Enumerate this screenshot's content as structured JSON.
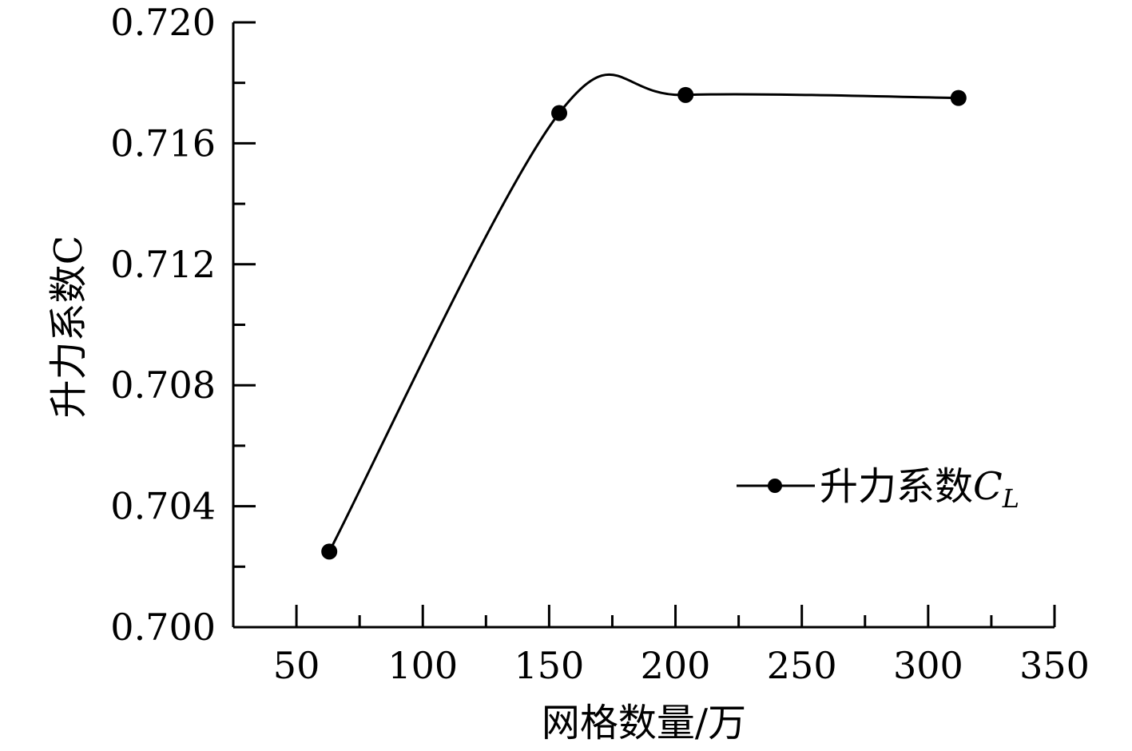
{
  "chart_data": {
    "type": "line",
    "title": "",
    "xlabel": "网格数量/万",
    "ylabel": "升力系数C",
    "xlim": [
      25,
      350
    ],
    "ylim": [
      0.7,
      0.72
    ],
    "x_major_ticks": [
      50,
      100,
      150,
      200,
      250,
      300,
      350
    ],
    "x_minor_ticks": [
      75,
      125,
      175,
      225,
      275,
      325
    ],
    "y_major_ticks": [
      0.7,
      0.704,
      0.708,
      0.712,
      0.716,
      0.72
    ],
    "y_minor_ticks": [
      0.702,
      0.706,
      0.71,
      0.714,
      0.718
    ],
    "x_tick_labels": [
      "50",
      "100",
      "150",
      "200",
      "250",
      "300",
      "350"
    ],
    "y_tick_labels": [
      "0.700",
      "0.704",
      "0.708",
      "0.712",
      "0.716",
      "0.720"
    ],
    "grid": false,
    "legend_position": "right",
    "series": [
      {
        "name_main": "升力系数",
        "name_var": "C",
        "name_sub": "L",
        "x": [
          63,
          154,
          204,
          312
        ],
        "y": [
          0.7025,
          0.717,
          0.7176,
          0.7175
        ],
        "smooth": true,
        "marker": "circle",
        "color": "#000000"
      }
    ]
  }
}
